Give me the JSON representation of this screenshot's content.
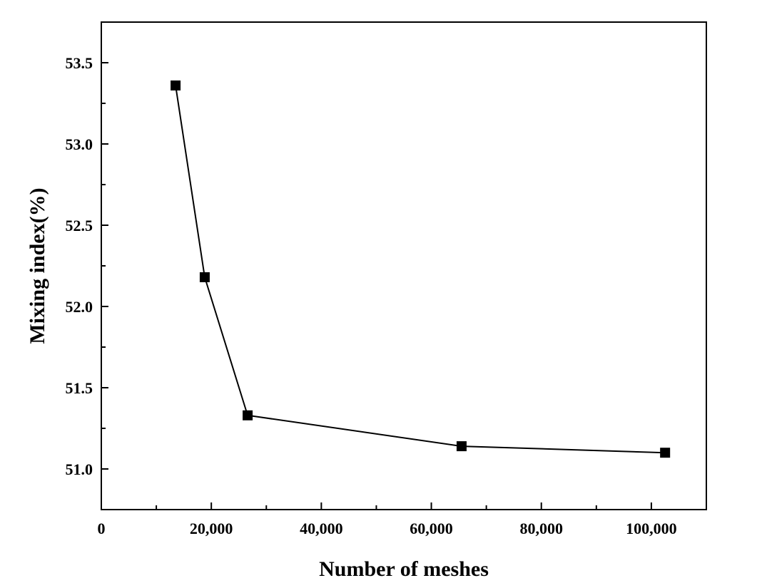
{
  "chart_data": {
    "type": "line",
    "xlabel": "Number of meshes",
    "ylabel": "Mixing index(%)",
    "xlim": [
      0,
      110000
    ],
    "ylim": [
      50.75,
      53.75
    ],
    "x_ticks": [
      0,
      20000,
      40000,
      60000,
      80000,
      100000
    ],
    "x_tick_labels": [
      "0",
      "20,000",
      "40,000",
      "60,000",
      "80,000",
      "100,000"
    ],
    "y_ticks": [
      51.0,
      51.5,
      52.0,
      52.5,
      53.0,
      53.5
    ],
    "y_tick_labels": [
      "51.0",
      "51.5",
      "52.0",
      "52.5",
      "53.0",
      "53.5"
    ],
    "grid": false,
    "series": [
      {
        "marker": "square",
        "color": "#000000",
        "x": [
          13500,
          18800,
          26600,
          65500,
          102500
        ],
        "y": [
          53.36,
          52.18,
          51.33,
          51.14,
          51.1
        ]
      }
    ]
  }
}
